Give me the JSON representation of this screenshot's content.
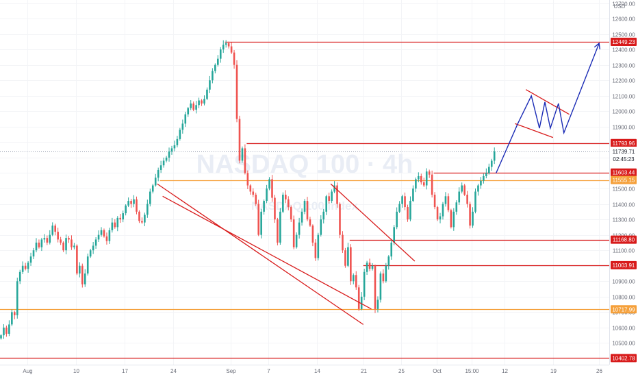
{
  "chart_data": {
    "type": "candlestick",
    "symbol_watermark": "NASDAQ 100 · 4h",
    "watermark_sub": "NASDAQ 100 Index",
    "currency": "USD",
    "ylim": [
      10360,
      12720
    ],
    "y_ticks": [
      10500,
      10600,
      10700,
      10800,
      10900,
      11000,
      11100,
      11200,
      11300,
      11400,
      11500,
      11600,
      11700,
      11800,
      11900,
      12000,
      12100,
      12200,
      12300,
      12400,
      12500,
      12600,
      12700
    ],
    "y_tick_labels": [
      "10500.00",
      "10600.00",
      "10700.00",
      "10800.00",
      "10900.00",
      "11000.00",
      "11100.00",
      "11200.00",
      "11300.00",
      "11400.00",
      "11500.00",
      "11600.00",
      "11700.00",
      "11800.00",
      "11900.00",
      "12000.00",
      "12100.00",
      "12200.00",
      "12300.00",
      "12400.00",
      "12500.00",
      "12600.00",
      "12700.00"
    ],
    "x_ticks": [
      {
        "label": "Aug",
        "i": 10
      },
      {
        "label": "10",
        "i": 28
      },
      {
        "label": "17",
        "i": 46
      },
      {
        "label": "24",
        "i": 64
      },
      {
        "label": "Sep",
        "i": 85
      },
      {
        "label": "7",
        "i": 99
      },
      {
        "label": "14",
        "i": 117
      },
      {
        "label": "21",
        "i": 134
      },
      {
        "label": "25",
        "i": 148
      },
      {
        "label": "Oct",
        "i": 161
      },
      {
        "label": "15:00",
        "i": 174
      },
      {
        "label": "12",
        "i": 186
      },
      {
        "label": "19",
        "i": 204
      },
      {
        "label": "26",
        "i": 221
      }
    ],
    "n_slots": 224,
    "closes": [
      10550,
      10600,
      10560,
      10620,
      10700,
      10680,
      10900,
      10960,
      11000,
      10980,
      11020,
      11060,
      11100,
      11150,
      11120,
      11170,
      11180,
      11150,
      11200,
      11260,
      11220,
      11170,
      11150,
      11100,
      11180,
      11170,
      11120,
      11130,
      10950,
      11000,
      10880,
      10950,
      11060,
      11100,
      11130,
      11170,
      11200,
      11230,
      11190,
      11160,
      11230,
      11280,
      11250,
      11310,
      11300,
      11340,
      11390,
      11420,
      11400,
      11430,
      11350,
      11290,
      11280,
      11330,
      11400,
      11480,
      11520,
      11570,
      11620,
      11650,
      11680,
      11700,
      11740,
      11760,
      11780,
      11820,
      11880,
      11920,
      11980,
      12020,
      12050,
      12010,
      12040,
      12070,
      12050,
      12080,
      12140,
      12200,
      12260,
      12300,
      12340,
      12400,
      12430,
      12440,
      12420,
      12380,
      12300,
      11950,
      11680,
      11760,
      11600,
      11520,
      11480,
      11460,
      11400,
      11200,
      11350,
      11420,
      11500,
      11560,
      11440,
      11300,
      11150,
      11350,
      11460,
      11430,
      11380,
      11300,
      11120,
      11200,
      11280,
      11350,
      11420,
      11300,
      11260,
      11150,
      11050,
      11200,
      11300,
      11350,
      11450,
      11420,
      11480,
      11520,
      11400,
      11200,
      11100,
      11000,
      11120,
      10900,
      10940,
      10860,
      10720,
      10800,
      10960,
      11020,
      10980,
      11000,
      10720,
      10780,
      10950,
      10900,
      11000,
      11060,
      11150,
      11250,
      11350,
      11400,
      11450,
      11380,
      11300,
      11420,
      11500,
      11560,
      11580,
      11540,
      11520,
      11610,
      11590,
      11460,
      11380,
      11300,
      11320,
      11400,
      11450,
      11360,
      11250,
      11350,
      11410,
      11480,
      11520,
      11460,
      11400,
      11260,
      11350,
      11480,
      11520,
      11550,
      11580,
      11600,
      11640,
      11680,
      11739.71
    ],
    "horizontal_levels": [
      {
        "value": 12449.23,
        "label": "12449.23",
        "color": "#d81b1b",
        "from_i": 83
      },
      {
        "value": 11793.96,
        "label": "11793.96",
        "color": "#d81b1b",
        "from_i": 91
      },
      {
        "value": 11603.44,
        "label": "11603.44",
        "color": "#d81b1b",
        "from_i": 160
      },
      {
        "value": 11555.15,
        "label": "11555.15",
        "color": "#f5a03a",
        "from_i": 59
      },
      {
        "value": 11168.8,
        "label": "11168.80",
        "color": "#d81b1b",
        "from_i": 129
      },
      {
        "value": 11003.91,
        "label": "11003.91",
        "color": "#d81b1b",
        "from_i": 134
      },
      {
        "value": 10717.99,
        "label": "10717.99",
        "color": "#f5a03a",
        "from_i": 0
      },
      {
        "value": 10402.78,
        "label": "10402.78",
        "color": "#d81b1b",
        "from_i": 0
      }
    ],
    "current_price": {
      "value": 11739.71,
      "label": "11739.71",
      "countdown": "02:45:23"
    },
    "trendlines": [
      {
        "from": [
          58,
          11530
        ],
        "to": [
          134,
          10620
        ]
      },
      {
        "from": [
          60,
          11450
        ],
        "to": [
          137,
          10720
        ]
      },
      {
        "from": [
          122,
          11530
        ],
        "to": [
          153,
          11030
        ]
      }
    ],
    "projection_path": [
      [
        183,
        11600
      ],
      [
        191,
        11920
      ],
      [
        196,
        12100
      ],
      [
        199,
        11890
      ],
      [
        201,
        12060
      ],
      [
        203,
        11890
      ],
      [
        206,
        12050
      ],
      [
        208,
        11860
      ],
      [
        221,
        12440
      ]
    ],
    "flag_channel": [
      {
        "from": [
          194,
          12140
        ],
        "to": [
          210,
          11980
        ]
      },
      {
        "from": [
          190,
          11920
        ],
        "to": [
          204,
          11830
        ]
      }
    ]
  }
}
